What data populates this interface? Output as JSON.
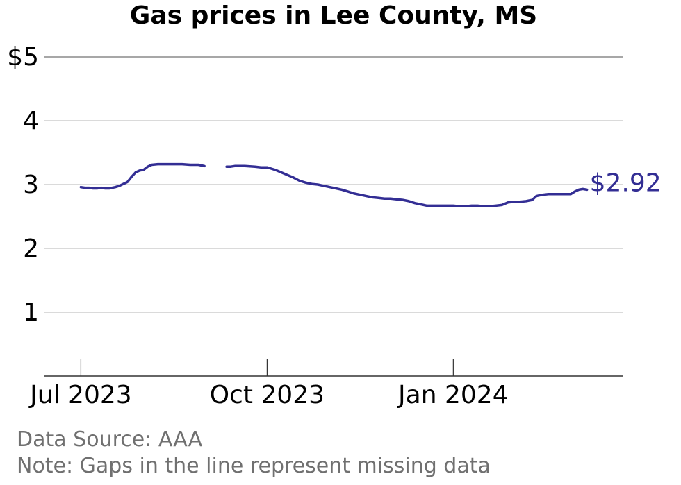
{
  "chart_data": {
    "type": "line",
    "title": "Gas prices in Lee County, MS",
    "xlabel": "",
    "ylabel": "",
    "ylim": [
      0,
      5
    ],
    "y_ticks": [
      {
        "value": 1,
        "label": "1"
      },
      {
        "value": 2,
        "label": "2"
      },
      {
        "value": 3,
        "label": "3"
      },
      {
        "value": 4,
        "label": "4"
      },
      {
        "value": 5,
        "label": "$5"
      }
    ],
    "x_ticks": [
      {
        "date": "2023-07-01",
        "label": "Jul 2023"
      },
      {
        "date": "2023-10-01",
        "label": "Oct 2023"
      },
      {
        "date": "2024-01-01",
        "label": "Jan 2024"
      }
    ],
    "xlim": [
      "2023-06-13",
      "2024-03-25"
    ],
    "line_color": "#332e94",
    "end_label": "$2.92",
    "grid": true,
    "series": [
      {
        "segments": [
          [
            [
              "2023-07-01",
              2.96
            ],
            [
              "2023-07-03",
              2.95
            ],
            [
              "2023-07-05",
              2.95
            ],
            [
              "2023-07-07",
              2.94
            ],
            [
              "2023-07-09",
              2.94
            ],
            [
              "2023-07-11",
              2.95
            ],
            [
              "2023-07-13",
              2.94
            ],
            [
              "2023-07-15",
              2.94
            ],
            [
              "2023-07-18",
              2.96
            ],
            [
              "2023-07-20",
              2.98
            ],
            [
              "2023-07-22",
              3.01
            ],
            [
              "2023-07-24",
              3.04
            ],
            [
              "2023-07-26",
              3.12
            ],
            [
              "2023-07-28",
              3.19
            ],
            [
              "2023-07-30",
              3.22
            ],
            [
              "2023-08-01",
              3.23
            ],
            [
              "2023-08-03",
              3.28
            ],
            [
              "2023-08-05",
              3.31
            ],
            [
              "2023-08-08",
              3.32
            ],
            [
              "2023-08-12",
              3.32
            ],
            [
              "2023-08-16",
              3.32
            ],
            [
              "2023-08-20",
              3.32
            ],
            [
              "2023-08-24",
              3.31
            ],
            [
              "2023-08-28",
              3.31
            ],
            [
              "2023-08-31",
              3.29
            ]
          ],
          [
            [
              "2023-09-11",
              3.28
            ],
            [
              "2023-09-13",
              3.28
            ],
            [
              "2023-09-15",
              3.29
            ],
            [
              "2023-09-20",
              3.29
            ],
            [
              "2023-09-25",
              3.28
            ],
            [
              "2023-09-28",
              3.27
            ],
            [
              "2023-10-01",
              3.27
            ],
            [
              "2023-10-03",
              3.25
            ],
            [
              "2023-10-05",
              3.23
            ],
            [
              "2023-10-08",
              3.19
            ],
            [
              "2023-10-11",
              3.15
            ],
            [
              "2023-10-14",
              3.11
            ],
            [
              "2023-10-17",
              3.06
            ],
            [
              "2023-10-20",
              3.03
            ],
            [
              "2023-10-23",
              3.01
            ],
            [
              "2023-10-26",
              3.0
            ],
            [
              "2023-10-29",
              2.98
            ],
            [
              "2023-11-01",
              2.96
            ],
            [
              "2023-11-04",
              2.94
            ],
            [
              "2023-11-07",
              2.92
            ],
            [
              "2023-11-10",
              2.89
            ],
            [
              "2023-11-13",
              2.86
            ],
            [
              "2023-11-16",
              2.84
            ],
            [
              "2023-11-19",
              2.82
            ],
            [
              "2023-11-22",
              2.8
            ],
            [
              "2023-11-25",
              2.79
            ],
            [
              "2023-11-28",
              2.78
            ],
            [
              "2023-12-01",
              2.78
            ],
            [
              "2023-12-04",
              2.77
            ],
            [
              "2023-12-07",
              2.76
            ],
            [
              "2023-12-10",
              2.74
            ],
            [
              "2023-12-13",
              2.71
            ],
            [
              "2023-12-16",
              2.69
            ],
            [
              "2023-12-19",
              2.67
            ],
            [
              "2023-12-22",
              2.67
            ],
            [
              "2023-12-25",
              2.67
            ],
            [
              "2023-12-28",
              2.67
            ],
            [
              "2024-01-01",
              2.67
            ],
            [
              "2024-01-04",
              2.66
            ],
            [
              "2024-01-07",
              2.66
            ],
            [
              "2024-01-10",
              2.67
            ],
            [
              "2024-01-13",
              2.67
            ],
            [
              "2024-01-16",
              2.66
            ],
            [
              "2024-01-19",
              2.66
            ],
            [
              "2024-01-22",
              2.67
            ],
            [
              "2024-01-25",
              2.68
            ],
            [
              "2024-01-28",
              2.72
            ],
            [
              "2024-01-31",
              2.73
            ],
            [
              "2024-02-03",
              2.73
            ],
            [
              "2024-02-06",
              2.74
            ],
            [
              "2024-02-09",
              2.76
            ],
            [
              "2024-02-11",
              2.82
            ],
            [
              "2024-02-14",
              2.84
            ],
            [
              "2024-02-17",
              2.85
            ],
            [
              "2024-02-20",
              2.85
            ],
            [
              "2024-02-23",
              2.85
            ],
            [
              "2024-02-26",
              2.85
            ],
            [
              "2024-02-28",
              2.85
            ],
            [
              "2024-03-01",
              2.89
            ],
            [
              "2024-03-03",
              2.92
            ],
            [
              "2024-03-05",
              2.93
            ],
            [
              "2024-03-07",
              2.92
            ]
          ]
        ]
      }
    ]
  },
  "footer": {
    "source": "Data Source: AAA",
    "note": "Note: Gaps in the line represent missing data"
  }
}
